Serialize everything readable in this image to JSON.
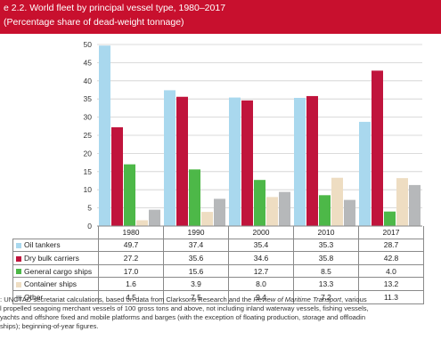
{
  "header": {
    "title": "e 2.2.   World fleet by principal vessel type, 1980–2017",
    "subtitle": "(Percentage share of dead-weight tonnage)"
  },
  "chart_data": {
    "type": "bar",
    "title": "World fleet by principal vessel type, 1980–2017",
    "subtitle": "(Percentage share of dead-weight tonnage)",
    "categories": [
      "1980",
      "1990",
      "2000",
      "2010",
      "2017"
    ],
    "ylim": [
      0,
      50
    ],
    "yticks": [
      "0",
      "5",
      "10",
      "15",
      "20",
      "25",
      "30",
      "35",
      "40",
      "45",
      "50"
    ],
    "grid": true,
    "series": [
      {
        "name": "Oil tankers",
        "color": "#a9d8ee",
        "values": [
          49.7,
          37.4,
          35.4,
          35.3,
          28.7
        ],
        "labels": [
          "49.7",
          "37.4",
          "35.4",
          "35.3",
          "28.7"
        ]
      },
      {
        "name": "Dry bulk carriers",
        "color": "#c0143c",
        "values": [
          27.2,
          35.6,
          34.6,
          35.8,
          42.8
        ],
        "labels": [
          "27.2",
          "35.6",
          "34.6",
          "35.8",
          "42.8"
        ]
      },
      {
        "name": "General cargo ships",
        "color": "#4db848",
        "values": [
          17.0,
          15.6,
          12.7,
          8.5,
          4.0
        ],
        "labels": [
          "17.0",
          "15.6",
          "12.7",
          "8.5",
          "4.0"
        ]
      },
      {
        "name": "Container ships",
        "color": "#eeddc2",
        "values": [
          1.6,
          3.9,
          8.0,
          13.3,
          13.2
        ],
        "labels": [
          "1.6",
          "3.9",
          "8.0",
          "13.3",
          "13.2"
        ]
      },
      {
        "name": "Other",
        "color": "#b6b8ba",
        "values": [
          4.5,
          7.5,
          9.4,
          7.2,
          11.3
        ],
        "labels": [
          "4.5",
          "7.5",
          "9.4",
          "7.2",
          "11.3"
        ]
      }
    ]
  },
  "note": {
    "line1_a": ": UNCTAD secretariat calculations, based on data from Clarksons Research and the ",
    "line1_b": "Review of Maritime Transport",
    "line1_c": ", various",
    "line2": "l propelled seagoing merchant vessels of 100 gross tons and above, not including inland waterway vessels, fishing vessels,",
    "line3": " yachts and offshore fixed and mobile platforms and barges (with the exception of floating production, storage and offloadin",
    "line4": "ships); beginning-of-year figures."
  }
}
